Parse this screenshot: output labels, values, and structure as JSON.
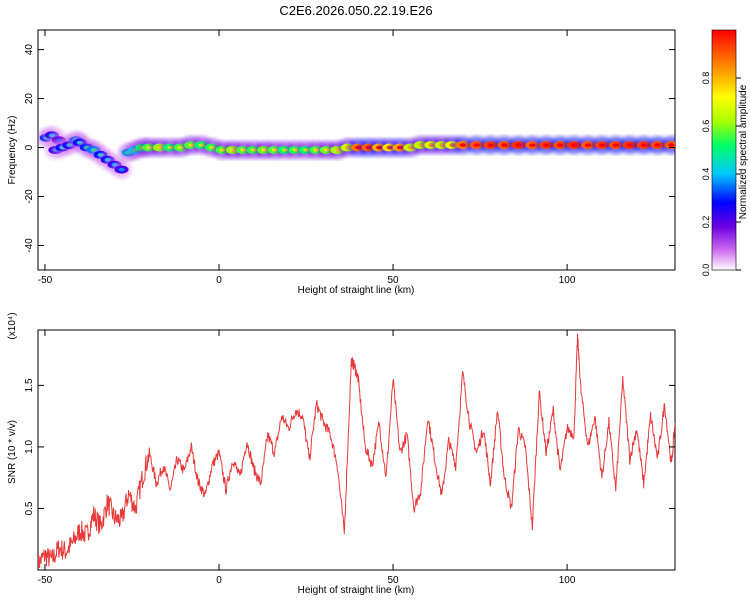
{
  "page": {
    "title": "C2E6.2026.050.22.19.E26"
  },
  "chart_data": [
    {
      "type": "heatmap",
      "xlabel": "Height of straight line (km)",
      "ylabel": "Frequency (Hz)",
      "xlim": [
        -52,
        131
      ],
      "ylim": [
        -50,
        48
      ],
      "xticks": [
        -50,
        0,
        50,
        100
      ],
      "yticks": [
        -40,
        -20,
        0,
        20,
        40
      ],
      "colorbar": {
        "label": "Normalized spectral amplitude",
        "range": [
          0.0,
          1.0
        ],
        "ticks": [
          0.0,
          0.2,
          0.4,
          0.6,
          0.8
        ],
        "colormap": [
          "#ffffff",
          "#d070f0",
          "#6b00e0",
          "#0000ff",
          "#00c8ff",
          "#00ff66",
          "#aaff00",
          "#ffff00",
          "#ff8800",
          "#ff0000"
        ]
      },
      "cells": [
        {
          "x": -49.5,
          "f": 4,
          "a": 0.35
        },
        {
          "x": -48,
          "f": 5,
          "a": 0.28
        },
        {
          "x": -46,
          "f": 3,
          "a": 0.22
        },
        {
          "x": -47,
          "f": -1,
          "a": 0.26
        },
        {
          "x": -45,
          "f": 0,
          "a": 0.32
        },
        {
          "x": -43,
          "f": 1,
          "a": 0.3
        },
        {
          "x": -41,
          "f": 3,
          "a": 0.38
        },
        {
          "x": -40,
          "f": 2,
          "a": 0.32
        },
        {
          "x": -38,
          "f": 0,
          "a": 0.35
        },
        {
          "x": -36,
          "f": -1,
          "a": 0.4
        },
        {
          "x": -34,
          "f": -3,
          "a": 0.34
        },
        {
          "x": -32,
          "f": -5,
          "a": 0.3
        },
        {
          "x": -30,
          "f": -7,
          "a": 0.28
        },
        {
          "x": -28,
          "f": -9,
          "a": 0.26
        },
        {
          "x": -26,
          "f": -2,
          "a": 0.42
        },
        {
          "x": -24,
          "f": -1,
          "a": 0.45
        },
        {
          "x": -22,
          "f": 0,
          "a": 0.55
        },
        {
          "x": -20,
          "f": 0,
          "a": 0.6
        },
        {
          "x": -17,
          "f": 0,
          "a": 0.65
        },
        {
          "x": -14,
          "f": 0,
          "a": 0.55
        },
        {
          "x": -11,
          "f": 0,
          "a": 0.6
        },
        {
          "x": -8,
          "f": 1,
          "a": 0.6
        },
        {
          "x": -5,
          "f": 1,
          "a": 0.55
        },
        {
          "x": -2,
          "f": 0,
          "a": 0.58
        },
        {
          "x": 1,
          "f": -1,
          "a": 0.6
        },
        {
          "x": 4,
          "f": -1,
          "a": 0.65
        },
        {
          "x": 7,
          "f": -1,
          "a": 0.6
        },
        {
          "x": 10,
          "f": -1,
          "a": 0.58
        },
        {
          "x": 13,
          "f": -1,
          "a": 0.62
        },
        {
          "x": 16,
          "f": -1,
          "a": 0.6
        },
        {
          "x": 19,
          "f": -1,
          "a": 0.55
        },
        {
          "x": 22,
          "f": -1,
          "a": 0.58
        },
        {
          "x": 25,
          "f": -1,
          "a": 0.55
        },
        {
          "x": 28,
          "f": -1,
          "a": 0.6
        },
        {
          "x": 31,
          "f": -1,
          "a": 0.62
        },
        {
          "x": 34,
          "f": -1,
          "a": 0.66
        },
        {
          "x": 37,
          "f": 0,
          "a": 0.7
        },
        {
          "x": 40,
          "f": 0,
          "a": 0.9
        },
        {
          "x": 43,
          "f": 0,
          "a": 0.92
        },
        {
          "x": 46,
          "f": 0,
          "a": 0.85
        },
        {
          "x": 49,
          "f": 0,
          "a": 0.8
        },
        {
          "x": 52,
          "f": 0,
          "a": 0.86
        },
        {
          "x": 55,
          "f": 0,
          "a": 0.7
        },
        {
          "x": 58,
          "f": 1,
          "a": 0.68
        },
        {
          "x": 61,
          "f": 1,
          "a": 0.72
        },
        {
          "x": 64,
          "f": 1,
          "a": 0.7
        },
        {
          "x": 67,
          "f": 1,
          "a": 0.75
        },
        {
          "x": 70,
          "f": 1,
          "a": 0.9
        },
        {
          "x": 74,
          "f": 1,
          "a": 0.93
        },
        {
          "x": 78,
          "f": 1,
          "a": 0.95
        },
        {
          "x": 82,
          "f": 1,
          "a": 0.93
        },
        {
          "x": 86,
          "f": 1,
          "a": 0.96
        },
        {
          "x": 90,
          "f": 1,
          "a": 0.92
        },
        {
          "x": 94,
          "f": 1,
          "a": 0.95
        },
        {
          "x": 98,
          "f": 1,
          "a": 0.94
        },
        {
          "x": 102,
          "f": 1,
          "a": 0.96
        },
        {
          "x": 106,
          "f": 1,
          "a": 0.93
        },
        {
          "x": 110,
          "f": 1,
          "a": 0.95
        },
        {
          "x": 114,
          "f": 1,
          "a": 0.94
        },
        {
          "x": 118,
          "f": 1,
          "a": 0.96
        },
        {
          "x": 122,
          "f": 1,
          "a": 0.95
        },
        {
          "x": 126,
          "f": 1,
          "a": 0.94
        },
        {
          "x": 130,
          "f": 1,
          "a": 0.93
        }
      ]
    },
    {
      "type": "line",
      "xlabel": "Height of straight line (km)",
      "ylabel": "SNR (10 * v/v)",
      "y_multiplier_label": "(x10⁴)",
      "xlim": [
        -52,
        131
      ],
      "ylim": [
        0.0,
        1.95
      ],
      "xticks": [
        -50,
        0,
        50,
        100
      ],
      "yticks": [
        0.5,
        1.0,
        1.5
      ],
      "color": "#e8393a",
      "series": [
        {
          "x": [
            -52,
            -50,
            -48,
            -46,
            -44,
            -42,
            -40,
            -38,
            -36,
            -34,
            -32,
            -30,
            -28,
            -26,
            -24,
            -22,
            -20,
            -18,
            -16,
            -14,
            -12,
            -10,
            -8,
            -6,
            -4,
            -2,
            0,
            2,
            4,
            6,
            8,
            10,
            12,
            14,
            16,
            18,
            20,
            22,
            24,
            26,
            28,
            30,
            32,
            34,
            36,
            38,
            39,
            40,
            42,
            44,
            46,
            48,
            50,
            52,
            54,
            56,
            58,
            60,
            62,
            64,
            66,
            68,
            70,
            72,
            74,
            76,
            78,
            80,
            82,
            84,
            86,
            88,
            90,
            92,
            94,
            96,
            98,
            100,
            102,
            103,
            104,
            106,
            108,
            110,
            112,
            114,
            116,
            118,
            120,
            122,
            124,
            126,
            128,
            130,
            131
          ],
          "y": [
            0.05,
            0.12,
            0.08,
            0.18,
            0.15,
            0.22,
            0.32,
            0.28,
            0.45,
            0.35,
            0.55,
            0.42,
            0.4,
            0.62,
            0.5,
            0.75,
            0.95,
            0.7,
            0.85,
            0.65,
            0.9,
            0.8,
            1.0,
            0.72,
            0.6,
            0.85,
            0.95,
            0.65,
            0.9,
            0.75,
            1.05,
            0.82,
            0.7,
            1.1,
            0.95,
            1.25,
            1.15,
            1.3,
            1.25,
            0.9,
            1.35,
            1.2,
            1.1,
            0.85,
            0.3,
            1.7,
            1.65,
            1.55,
            1.0,
            0.85,
            1.2,
            0.75,
            1.55,
            0.95,
            1.1,
            0.5,
            0.65,
            1.25,
            0.9,
            0.6,
            1.05,
            0.85,
            1.6,
            1.2,
            0.95,
            1.15,
            0.7,
            1.3,
            0.75,
            0.5,
            1.15,
            1.0,
            0.35,
            1.45,
            0.95,
            1.3,
            0.8,
            1.15,
            1.1,
            1.9,
            1.45,
            1.0,
            1.25,
            0.75,
            1.2,
            0.65,
            1.55,
            0.9,
            1.15,
            0.7,
            1.25,
            0.9,
            1.35,
            0.85,
            1.2
          ]
        }
      ]
    }
  ]
}
